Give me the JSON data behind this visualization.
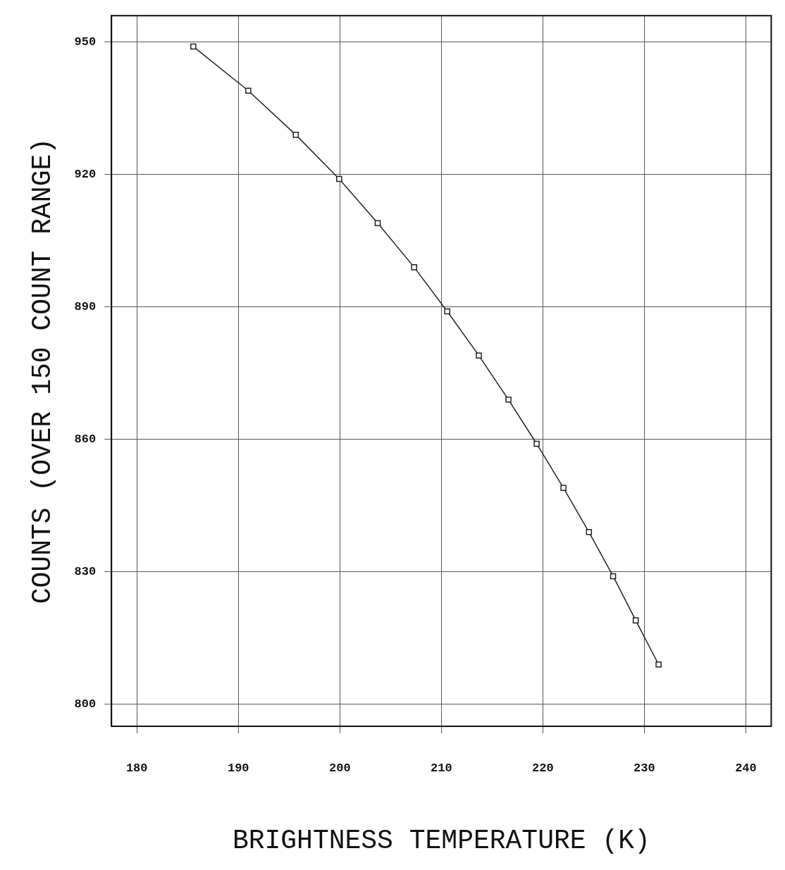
{
  "chart_data": {
    "type": "line",
    "xlabel": "BRIGHTNESS TEMPERATURE (K)",
    "ylabel": "COUNTS (OVER 150 COUNT RANGE)",
    "series": [
      {
        "color": "#222222",
        "x": [
          185.56,
          190.98,
          195.66,
          199.93,
          203.73,
          207.32,
          210.58,
          213.69,
          216.61,
          219.39,
          222.03,
          224.54,
          226.92,
          229.15,
          231.4
        ],
        "values": [
          949,
          939,
          929,
          919,
          909,
          899,
          889,
          879,
          869,
          859,
          849,
          839,
          829,
          819,
          809
        ]
      }
    ],
    "xlim": [
      177.5,
      242.5
    ],
    "xticks": [
      180,
      190,
      200,
      210,
      220,
      230,
      240
    ],
    "ylim": [
      795,
      956
    ],
    "yticks": [
      800,
      830,
      860,
      890,
      920,
      950
    ],
    "grid": true,
    "marker": "square",
    "line_style": "solid"
  }
}
